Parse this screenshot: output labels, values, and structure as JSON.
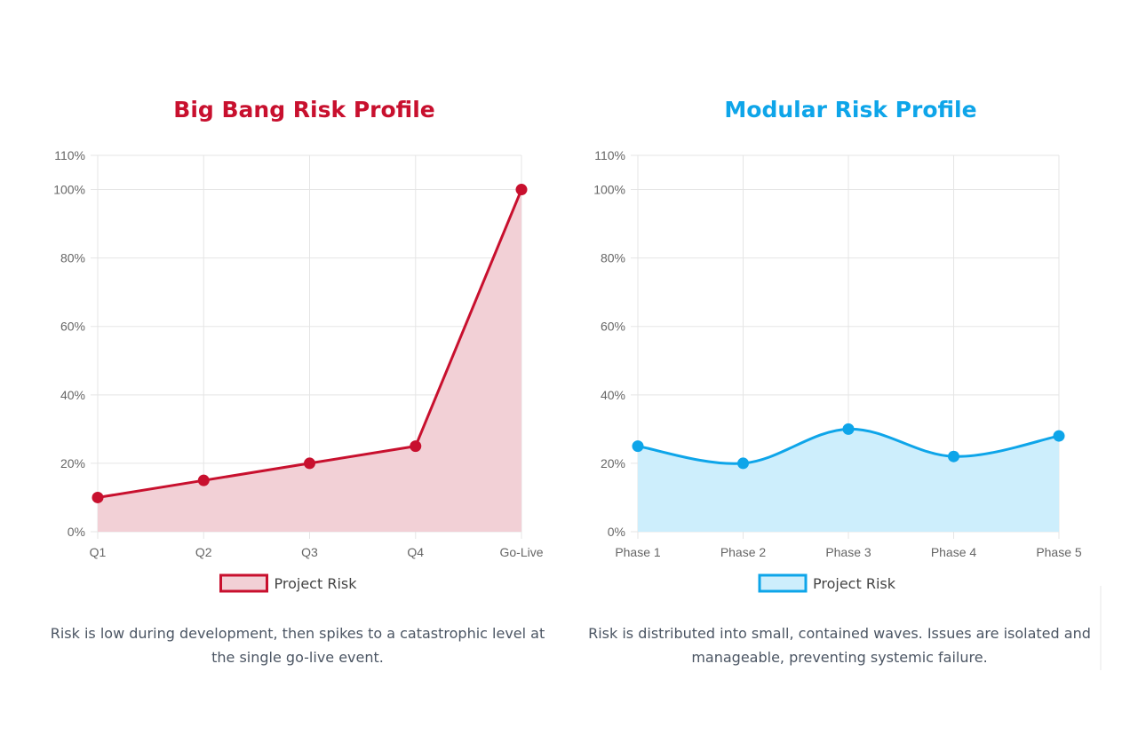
{
  "chart_data": [
    {
      "type": "area",
      "title": "Big Bang Risk Profile",
      "title_color": "#c8102e",
      "categories": [
        "Q1",
        "Q2",
        "Q3",
        "Q4",
        "Go-Live"
      ],
      "series": [
        {
          "name": "Project Risk",
          "values": [
            10,
            15,
            20,
            25,
            100
          ],
          "line_color": "#c8102e",
          "fill_color": "#f2d0d6",
          "curve": "straight"
        }
      ],
      "y_ticks": [
        "0%",
        "20%",
        "40%",
        "60%",
        "80%",
        "100%",
        "110%"
      ],
      "y_tick_values": [
        0,
        20,
        40,
        60,
        80,
        100,
        110
      ],
      "ylim": [
        0,
        110
      ],
      "grid": true,
      "legend_position": "bottom",
      "caption": "Risk is low during development, then spikes to a catastrophic level at the single go-live event."
    },
    {
      "type": "area",
      "title": "Modular Risk Profile",
      "title_color": "#0ea5e9",
      "categories": [
        "Phase 1",
        "Phase 2",
        "Phase 3",
        "Phase 4",
        "Phase 5"
      ],
      "series": [
        {
          "name": "Project Risk",
          "values": [
            25,
            20,
            30,
            22,
            28
          ],
          "line_color": "#0ea5e9",
          "fill_color": "#cdeefc",
          "curve": "smooth"
        }
      ],
      "y_ticks": [
        "0%",
        "20%",
        "40%",
        "60%",
        "80%",
        "100%",
        "110%"
      ],
      "y_tick_values": [
        0,
        20,
        40,
        60,
        80,
        100,
        110
      ],
      "ylim": [
        0,
        110
      ],
      "grid": true,
      "legend_position": "bottom",
      "caption": "Risk is distributed into small, contained waves. Issues are isolated and manageable, preventing systemic failure."
    }
  ]
}
